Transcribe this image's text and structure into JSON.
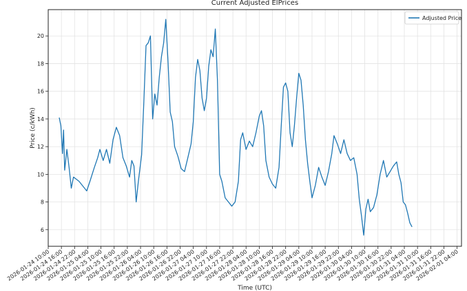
{
  "chart_data": {
    "type": "line",
    "title": "Current Adjusted ElPrices",
    "xlabel": "Time (UTC)",
    "ylabel": "Price (c/kWh)",
    "ylim": [
      4.8,
      21.9
    ],
    "yticks": [
      6,
      8,
      10,
      12,
      14,
      16,
      18,
      20
    ],
    "xlim": [
      "2026-01-24T10:00",
      "2026-02-01T06:00"
    ],
    "xtick_labels": [
      "2026-01-24 10:00",
      "2026-01-24 16:00",
      "2026-01-24 22:00",
      "2026-01-25 04:00",
      "2026-01-25 10:00",
      "2026-01-25 16:00",
      "2026-01-25 22:00",
      "2026-01-26 04:00",
      "2026-01-26 10:00",
      "2026-01-26 16:00",
      "2026-01-26 22:00",
      "2026-01-27 04:00",
      "2026-01-27 10:00",
      "2026-01-27 16:00",
      "2026-01-27 22:00",
      "2026-01-28 04:00",
      "2026-01-28 10:00",
      "2026-01-28 16:00",
      "2026-01-28 22:00",
      "2026-01-29 04:00",
      "2026-01-29 10:00",
      "2026-01-29 16:00",
      "2026-01-29 22:00",
      "2026-01-30 04:00",
      "2026-01-30 10:00",
      "2026-01-30 16:00",
      "2026-01-30 22:00",
      "2026-01-31 04:00",
      "2026-01-31 10:00",
      "2026-01-31 16:00",
      "2026-01-31 22:00",
      "2026-02-01 04:00"
    ],
    "grid": true,
    "legend_position": "top-right",
    "color": "#1f77b4",
    "series": [
      {
        "name": "Adjusted Price",
        "points": [
          [
            "2026-01-24T15:00",
            14.1
          ],
          [
            "2026-01-24T15:45",
            13.5
          ],
          [
            "2026-01-24T16:30",
            11.5
          ],
          [
            "2026-01-24T17:00",
            13.2
          ],
          [
            "2026-01-24T17:30",
            10.3
          ],
          [
            "2026-01-24T18:30",
            11.8
          ],
          [
            "2026-01-24T19:30",
            10.5
          ],
          [
            "2026-01-24T20:30",
            9.0
          ],
          [
            "2026-01-24T21:30",
            9.8
          ],
          [
            "2026-01-25T00:00",
            9.5
          ],
          [
            "2026-01-25T02:00",
            9.1
          ],
          [
            "2026-01-25T03:30",
            8.8
          ],
          [
            "2026-01-25T05:00",
            9.5
          ],
          [
            "2026-01-25T07:00",
            10.5
          ],
          [
            "2026-01-25T08:30",
            11.2
          ],
          [
            "2026-01-25T09:30",
            11.8
          ],
          [
            "2026-01-25T11:00",
            11.0
          ],
          [
            "2026-01-25T12:30",
            11.8
          ],
          [
            "2026-01-25T14:00",
            10.8
          ],
          [
            "2026-01-25T15:30",
            12.5
          ],
          [
            "2026-01-25T17:00",
            13.4
          ],
          [
            "2026-01-25T18:30",
            12.8
          ],
          [
            "2026-01-25T20:00",
            11.2
          ],
          [
            "2026-01-25T21:30",
            10.6
          ],
          [
            "2026-01-25T23:00",
            9.8
          ],
          [
            "2026-01-26T00:00",
            11.0
          ],
          [
            "2026-01-26T01:00",
            10.6
          ],
          [
            "2026-01-26T02:00",
            8.0
          ],
          [
            "2026-01-26T03:00",
            9.5
          ],
          [
            "2026-01-26T04:30",
            11.4
          ],
          [
            "2026-01-26T05:30",
            15.2
          ],
          [
            "2026-01-26T06:30",
            19.3
          ],
          [
            "2026-01-26T07:30",
            19.5
          ],
          [
            "2026-01-26T08:30",
            20.0
          ],
          [
            "2026-01-26T09:30",
            14.0
          ],
          [
            "2026-01-26T10:30",
            15.8
          ],
          [
            "2026-01-26T11:30",
            15.0
          ],
          [
            "2026-01-26T12:30",
            17.0
          ],
          [
            "2026-01-26T13:30",
            18.5
          ],
          [
            "2026-01-26T14:30",
            19.5
          ],
          [
            "2026-01-26T15:30",
            21.2
          ],
          [
            "2026-01-26T16:30",
            18.2
          ],
          [
            "2026-01-26T17:30",
            14.5
          ],
          [
            "2026-01-26T18:30",
            13.8
          ],
          [
            "2026-01-26T19:30",
            12.0
          ],
          [
            "2026-01-26T21:00",
            11.3
          ],
          [
            "2026-01-26T22:30",
            10.4
          ],
          [
            "2026-01-27T00:00",
            10.2
          ],
          [
            "2026-01-27T01:30",
            11.2
          ],
          [
            "2026-01-27T03:00",
            12.2
          ],
          [
            "2026-01-27T04:00",
            13.8
          ],
          [
            "2026-01-27T05:00",
            17.0
          ],
          [
            "2026-01-27T06:00",
            18.3
          ],
          [
            "2026-01-27T07:00",
            17.5
          ],
          [
            "2026-01-27T08:00",
            15.5
          ],
          [
            "2026-01-27T09:00",
            14.6
          ],
          [
            "2026-01-27T10:00",
            15.5
          ],
          [
            "2026-01-27T11:00",
            17.8
          ],
          [
            "2026-01-27T12:00",
            19.0
          ],
          [
            "2026-01-27T13:00",
            18.5
          ],
          [
            "2026-01-27T14:00",
            20.5
          ],
          [
            "2026-01-27T15:00",
            16.8
          ],
          [
            "2026-01-27T16:00",
            10.0
          ],
          [
            "2026-01-27T17:00",
            9.5
          ],
          [
            "2026-01-27T18:30",
            8.3
          ],
          [
            "2026-01-27T20:00",
            8.0
          ],
          [
            "2026-01-27T21:30",
            7.7
          ],
          [
            "2026-01-27T23:00",
            8.0
          ],
          [
            "2026-01-28T00:30",
            9.5
          ],
          [
            "2026-01-28T01:30",
            12.5
          ],
          [
            "2026-01-28T02:30",
            13.0
          ],
          [
            "2026-01-28T04:00",
            11.8
          ],
          [
            "2026-01-28T05:30",
            12.4
          ],
          [
            "2026-01-28T07:00",
            12.0
          ],
          [
            "2026-01-28T08:30",
            13.0
          ],
          [
            "2026-01-28T10:00",
            14.2
          ],
          [
            "2026-01-28T11:00",
            14.6
          ],
          [
            "2026-01-28T12:00",
            13.5
          ],
          [
            "2026-01-28T13:00",
            11.0
          ],
          [
            "2026-01-28T14:30",
            9.8
          ],
          [
            "2026-01-28T16:00",
            9.3
          ],
          [
            "2026-01-28T17:30",
            9.0
          ],
          [
            "2026-01-28T19:00",
            10.5
          ],
          [
            "2026-01-28T20:00",
            13.5
          ],
          [
            "2026-01-28T21:00",
            16.3
          ],
          [
            "2026-01-28T22:00",
            16.6
          ],
          [
            "2026-01-28T23:00",
            16.0
          ],
          [
            "2026-01-29T00:00",
            13.0
          ],
          [
            "2026-01-29T01:00",
            12.0
          ],
          [
            "2026-01-29T02:00",
            13.5
          ],
          [
            "2026-01-29T03:00",
            15.5
          ],
          [
            "2026-01-29T04:00",
            17.3
          ],
          [
            "2026-01-29T05:00",
            16.8
          ],
          [
            "2026-01-29T06:00",
            15.0
          ],
          [
            "2026-01-29T07:00",
            12.5
          ],
          [
            "2026-01-29T08:00",
            10.8
          ],
          [
            "2026-01-29T09:00",
            9.5
          ],
          [
            "2026-01-29T10:00",
            8.3
          ],
          [
            "2026-01-29T11:30",
            9.2
          ],
          [
            "2026-01-29T13:00",
            10.5
          ],
          [
            "2026-01-29T14:30",
            9.8
          ],
          [
            "2026-01-29T16:00",
            9.2
          ],
          [
            "2026-01-29T17:30",
            10.2
          ],
          [
            "2026-01-29T19:00",
            11.5
          ],
          [
            "2026-01-29T20:00",
            12.8
          ],
          [
            "2026-01-29T21:30",
            12.2
          ],
          [
            "2026-01-29T23:00",
            11.5
          ],
          [
            "2026-01-30T00:30",
            12.5
          ],
          [
            "2026-01-30T02:00",
            11.5
          ],
          [
            "2026-01-30T03:30",
            11.0
          ],
          [
            "2026-01-30T05:00",
            11.2
          ],
          [
            "2026-01-30T06:30",
            10.0
          ],
          [
            "2026-01-30T07:30",
            8.2
          ],
          [
            "2026-01-30T08:30",
            7.0
          ],
          [
            "2026-01-30T09:30",
            5.6
          ],
          [
            "2026-01-30T10:30",
            7.5
          ],
          [
            "2026-01-30T11:30",
            8.2
          ],
          [
            "2026-01-30T12:30",
            7.3
          ],
          [
            "2026-01-30T14:00",
            7.6
          ],
          [
            "2026-01-30T15:30",
            8.5
          ],
          [
            "2026-01-30T17:00",
            10.0
          ],
          [
            "2026-01-30T18:30",
            11.0
          ],
          [
            "2026-01-30T20:00",
            9.8
          ],
          [
            "2026-01-30T21:30",
            10.2
          ],
          [
            "2026-01-30T23:00",
            10.6
          ],
          [
            "2026-01-31T00:30",
            10.9
          ],
          [
            "2026-01-31T01:30",
            10.0
          ],
          [
            "2026-01-31T02:30",
            9.4
          ],
          [
            "2026-01-31T03:30",
            8.0
          ],
          [
            "2026-01-31T04:30",
            7.8
          ],
          [
            "2026-01-31T05:30",
            7.2
          ],
          [
            "2026-01-31T06:30",
            6.5
          ],
          [
            "2026-01-31T07:30",
            6.2
          ]
        ]
      }
    ]
  }
}
